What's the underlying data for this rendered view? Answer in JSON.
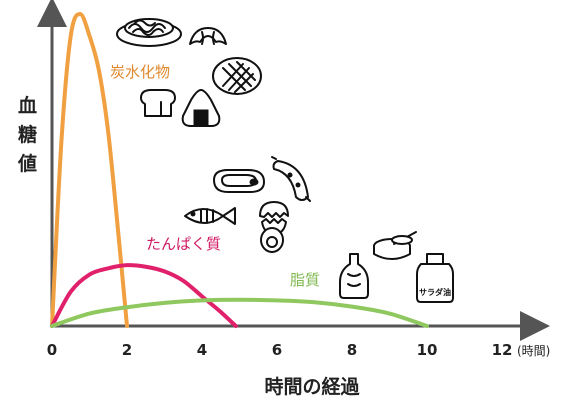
{
  "chart_data": {
    "type": "line",
    "title": "",
    "ylabel": "血糖値",
    "xlabel": "時間の経過",
    "x_unit": "(時間)",
    "x_ticks": [
      0,
      2,
      4,
      6,
      8,
      10,
      12
    ],
    "xlim": [
      0,
      12
    ],
    "ylim": [
      0,
      10
    ],
    "grid": false,
    "legend": "none (labels placed next to curves)",
    "series": [
      {
        "name": "炭水化物",
        "color": "#f0a040",
        "x": [
          0,
          0.25,
          0.5,
          0.75,
          1.0,
          1.25,
          1.5,
          1.75,
          2.0
        ],
        "y": [
          0,
          5.9,
          9.3,
          10.0,
          9.3,
          8.2,
          6.2,
          3.2,
          0
        ]
      },
      {
        "name": "たんぱく質",
        "color": "#e0206a",
        "x": [
          0,
          0.5,
          1,
          1.5,
          2,
          2.5,
          3,
          3.5,
          4,
          4.5,
          4.9
        ],
        "y": [
          0,
          1.1,
          1.65,
          1.85,
          1.95,
          1.9,
          1.75,
          1.45,
          0.95,
          0.45,
          0
        ]
      },
      {
        "name": "脂質",
        "color": "#90c860",
        "x": [
          0,
          1,
          2,
          3,
          4,
          5,
          6,
          7,
          8,
          9,
          10
        ],
        "y": [
          0,
          0.4,
          0.6,
          0.74,
          0.82,
          0.84,
          0.82,
          0.76,
          0.62,
          0.4,
          0
        ]
      }
    ]
  },
  "icons": {
    "carbohydrate": [
      "spaghetti-icon",
      "croissant-icon",
      "melon-bread-icon",
      "bread-loaf-icon",
      "onigiri-icon"
    ],
    "protein": [
      "steak-icon",
      "sausage-icon",
      "fish-icon",
      "egg-icon",
      "boiled-egg-icon"
    ],
    "fat": [
      "mayonnaise-bottle-icon",
      "butter-can-icon",
      "salad-oil-bottle-icon"
    ]
  },
  "oil_bottle_label": "サラダ油",
  "colors": {
    "axis": "#555555",
    "text": "#222222"
  }
}
